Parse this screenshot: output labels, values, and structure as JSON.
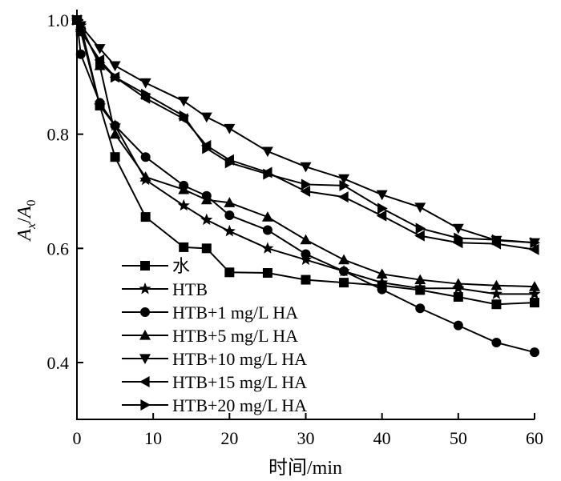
{
  "chart_data": {
    "type": "line",
    "xlabel": "时间/min",
    "ylabel": "",
    "ylabel_parts": {
      "main": "A",
      "sub": "x",
      "sep": "/",
      "main2": "A",
      "sub2": "0"
    },
    "xlim": [
      0,
      60
    ],
    "ylim": [
      0.3,
      1.0
    ],
    "xticks": [
      0,
      10,
      20,
      30,
      40,
      50,
      60
    ],
    "yticks": [
      0.4,
      0.6,
      0.8,
      1.0
    ],
    "ytick_labels": [
      "0.4",
      "0.6",
      "0.8",
      "1.0"
    ],
    "grid": false,
    "legend_position": "bottom-left",
    "series": [
      {
        "name": "水",
        "marker": "square",
        "x": [
          0,
          0.5,
          3,
          5,
          9,
          14,
          17,
          20,
          25,
          30,
          35,
          40,
          45,
          50,
          55,
          60
        ],
        "y": [
          1.0,
          0.98,
          0.85,
          0.76,
          0.655,
          0.602,
          0.6,
          0.558,
          0.557,
          0.545,
          0.54,
          0.535,
          0.527,
          0.515,
          0.502,
          0.505
        ]
      },
      {
        "name": "HTB",
        "marker": "star",
        "x": [
          0,
          0.5,
          3,
          5,
          9,
          14,
          17,
          20,
          25,
          30,
          35,
          40,
          45,
          50,
          55,
          60
        ],
        "y": [
          1.0,
          0.99,
          0.85,
          0.815,
          0.72,
          0.675,
          0.65,
          0.63,
          0.6,
          0.58,
          0.56,
          0.54,
          0.53,
          0.53,
          0.52,
          0.52
        ]
      },
      {
        "name": "HTB+1 mg/L HA",
        "marker": "circle",
        "x": [
          0,
          0.5,
          3,
          5,
          9,
          14,
          17,
          20,
          25,
          30,
          35,
          40,
          45,
          50,
          55,
          60
        ],
        "y": [
          1.0,
          0.94,
          0.855,
          0.815,
          0.76,
          0.71,
          0.692,
          0.658,
          0.632,
          0.59,
          0.56,
          0.528,
          0.495,
          0.465,
          0.435,
          0.418
        ]
      },
      {
        "name": "HTB+5 mg/L HA",
        "marker": "triangle-up",
        "x": [
          0,
          0.5,
          3,
          5,
          9,
          14,
          17,
          20,
          25,
          30,
          35,
          40,
          45,
          50,
          55,
          60
        ],
        "y": [
          1.0,
          0.99,
          0.92,
          0.8,
          0.725,
          0.703,
          0.685,
          0.68,
          0.655,
          0.615,
          0.58,
          0.555,
          0.545,
          0.538,
          0.535,
          0.533
        ]
      },
      {
        "name": "HTB+10 mg/L HA",
        "marker": "triangle-down",
        "x": [
          0,
          0.5,
          3,
          5,
          9,
          14,
          17,
          20,
          25,
          30,
          35,
          40,
          45,
          50,
          55,
          60
        ],
        "y": [
          1.0,
          0.99,
          0.95,
          0.92,
          0.89,
          0.858,
          0.83,
          0.81,
          0.77,
          0.743,
          0.722,
          0.694,
          0.672,
          0.635,
          0.614,
          0.61
        ]
      },
      {
        "name": "HTB+15 mg/L HA",
        "marker": "triangle-left",
        "x": [
          0,
          0.5,
          3,
          5,
          9,
          14,
          17,
          20,
          25,
          30,
          35,
          40,
          45,
          50,
          55,
          60
        ],
        "y": [
          1.0,
          0.98,
          0.93,
          0.9,
          0.863,
          0.827,
          0.78,
          0.755,
          0.733,
          0.7,
          0.69,
          0.657,
          0.622,
          0.61,
          0.608,
          0.598
        ]
      },
      {
        "name": "HTB+20 mg/L HA",
        "marker": "triangle-right",
        "x": [
          0,
          0.5,
          3,
          5,
          9,
          14,
          17,
          20,
          25,
          30,
          35,
          40,
          45,
          50,
          55,
          60
        ],
        "y": [
          1.0,
          0.985,
          0.925,
          0.9,
          0.87,
          0.832,
          0.775,
          0.75,
          0.73,
          0.712,
          0.71,
          0.67,
          0.635,
          0.618,
          0.615,
          0.61
        ]
      }
    ]
  }
}
